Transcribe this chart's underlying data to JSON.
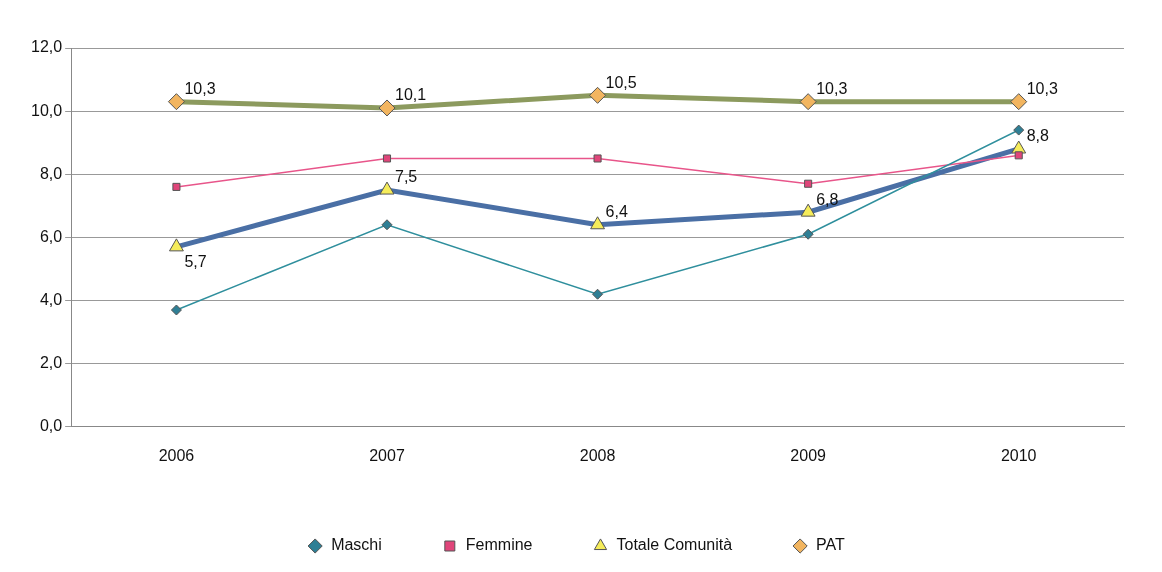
{
  "chart_data": {
    "type": "line",
    "categories": [
      "2006",
      "2007",
      "2008",
      "2009",
      "2010"
    ],
    "series": [
      {
        "name": "Maschi",
        "color": "#2f8f9d",
        "colors": [
          "#2f7f95",
          "#2f7f95",
          "#2f7f95",
          "#2f7f95",
          "#2f7f95"
        ],
        "marker": "diamond",
        "values": [
          3.7,
          6.4,
          4.2,
          6.1,
          9.4
        ]
      },
      {
        "name": "Femmine",
        "color": "#e8558a",
        "colors": [
          "#e0457a",
          "#e0457a",
          "#e0457a",
          "#e0457a",
          "#e0457a"
        ],
        "marker": "square",
        "values": [
          7.6,
          8.5,
          8.5,
          7.7,
          8.6
        ]
      },
      {
        "name": "Totale Comunità",
        "color": "#4a6fa5",
        "colors": [
          "#f5ec5a",
          "#f5ec5a",
          "#f5ec5a",
          "#f5ec5a",
          "#f5ec5a"
        ],
        "marker": "triangle",
        "values": [
          5.7,
          7.5,
          6.4,
          6.8,
          8.8
        ],
        "value_labels": [
          "5,7",
          "7,5",
          "6,4",
          "6,8",
          "8,8"
        ]
      },
      {
        "name": "PAT",
        "color": "#8c9a5e",
        "colors": [
          "#f2b560",
          "#f2b560",
          "#f2b560",
          "#f2b560",
          "#f2b560"
        ],
        "marker": "diamond",
        "values": [
          10.3,
          10.1,
          10.5,
          10.3,
          10.3
        ],
        "value_labels": [
          "10,3",
          "10,1",
          "10,5",
          "10,3",
          "10,3"
        ]
      }
    ],
    "ylim": [
      0,
      12
    ],
    "yticks": [
      {
        "value": 0,
        "label": "0,0"
      },
      {
        "value": 2,
        "label": "2,0"
      },
      {
        "value": 4,
        "label": "4,0"
      },
      {
        "value": 6,
        "label": "6,0"
      },
      {
        "value": 8,
        "label": "8,0"
      },
      {
        "value": 10,
        "label": "10,0"
      },
      {
        "value": 12,
        "label": "12,0"
      }
    ],
    "grid": "y",
    "legend": "bottom"
  }
}
